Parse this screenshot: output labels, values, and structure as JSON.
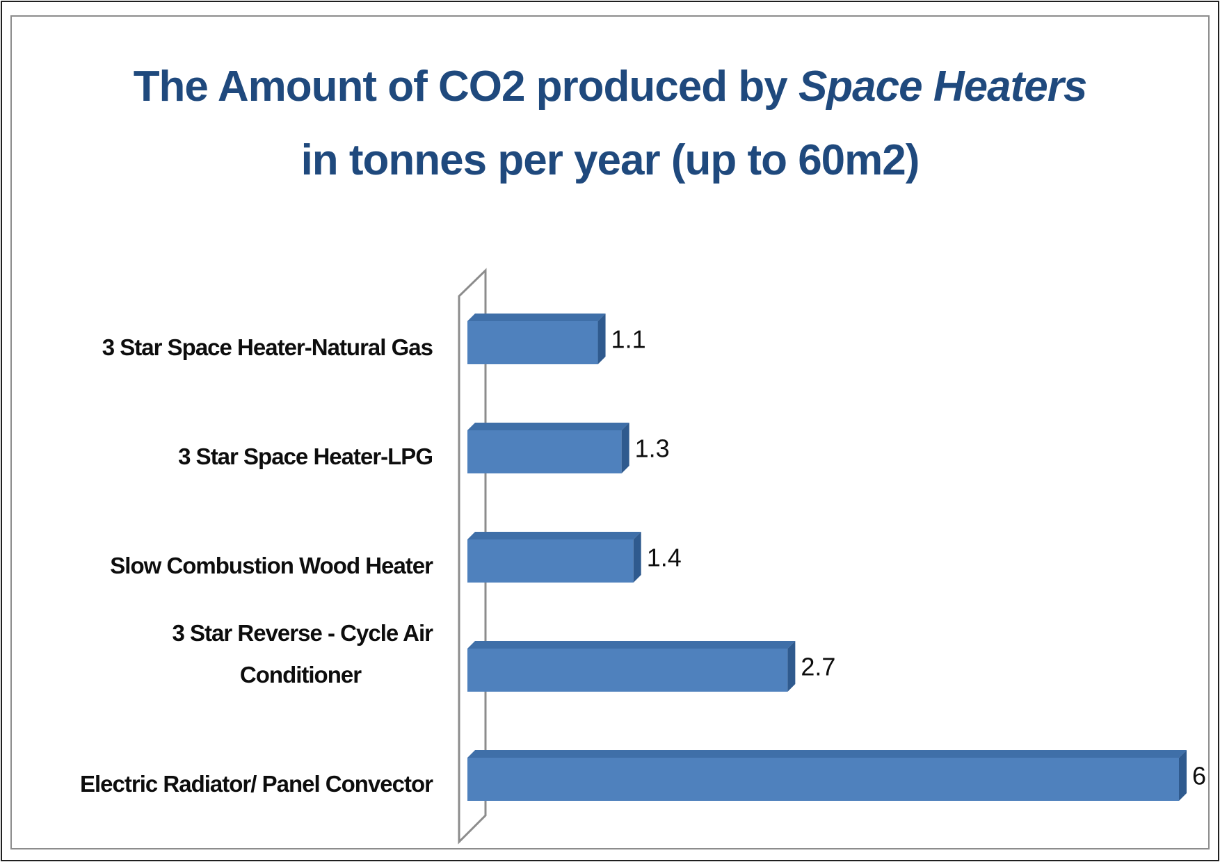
{
  "chart_data": {
    "type": "bar",
    "orientation": "horizontal",
    "style": "3d",
    "title_lines": [
      {
        "plain": "The Amount of CO2 produced by ",
        "italic": "Space Heaters"
      },
      {
        "plain": "in tonnes per year (up to 60m2)",
        "italic": ""
      }
    ],
    "categories": [
      [
        "3 Star Space  Heater-Natural Gas"
      ],
      [
        "3 Star Space  Heater-LPG"
      ],
      [
        "Slow Combustion  Wood Heater"
      ],
      [
        "3 Star Reverse - Cycle  Air",
        "Conditioner"
      ],
      [
        "Electric Radiator/  Panel Convector"
      ]
    ],
    "values": [
      1.1,
      1.3,
      1.4,
      2.7,
      6
    ],
    "value_labels": [
      "1.1",
      "1.3",
      "1.4",
      "2.7",
      "6"
    ],
    "xlim": [
      0,
      6
    ],
    "grid": false,
    "legend": "none",
    "colors": {
      "bar_front": "#4f81bd",
      "bar_top": "#3f6fa8",
      "bar_side": "#2f5a8e",
      "title": "#1f497d",
      "axis_wall": "#8c8c8c"
    }
  }
}
